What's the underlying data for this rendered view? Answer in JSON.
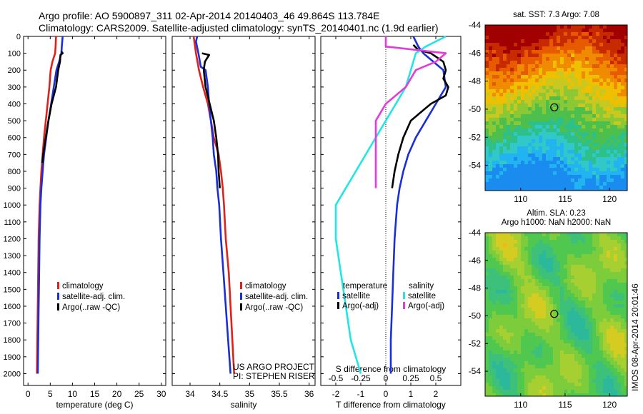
{
  "header": {
    "line1": "Argo profile: AO 5900897_311 02-Apr-2014 20140403_46 49.864S 113.784E",
    "line2": "Climatology: CARS2009. Satellite-adjusted climatology: synTS_20140401.nc (1.9d earlier)"
  },
  "credit": {
    "line1": "US ARGO PROJECT",
    "line2": "PI: STEPHEN RISER"
  },
  "stamp": "IMOS 08-Apr-2014 20:01:46",
  "colors": {
    "climatology": "#e0201a",
    "satellite": "#1a2fd6",
    "argo": "#000000",
    "satellite_s": "#22e5e5",
    "argo_s": "#e83ad8"
  },
  "chart_data": [
    {
      "type": "line",
      "xlabel": "temperature (deg C)",
      "ylabel": "",
      "xlim": [
        -1,
        31
      ],
      "ylim": [
        2070,
        0
      ],
      "xticks": [
        "0",
        "5",
        "10",
        "15",
        "20",
        "25",
        "30"
      ],
      "xtick_values": [
        0,
        5,
        10,
        15,
        20,
        25,
        30
      ],
      "yticks": [
        "0",
        "100",
        "200",
        "300",
        "400",
        "500",
        "600",
        "700",
        "800",
        "900",
        "1000",
        "1100",
        "1200",
        "1300",
        "1400",
        "1500",
        "1600",
        "1700",
        "1800",
        "1900",
        "2000"
      ],
      "legend": [
        "climatology",
        "satellite-adj. clim.",
        "Argo(..raw -QC)"
      ],
      "series": [
        {
          "name": "climatology",
          "color": "#e0201a",
          "points": [
            [
              6.3,
              0
            ],
            [
              6.2,
              60
            ],
            [
              6.1,
              100
            ],
            [
              5.5,
              150
            ],
            [
              5.1,
              200
            ],
            [
              4.8,
              300
            ],
            [
              4.4,
              400
            ],
            [
              4.0,
              500
            ],
            [
              3.6,
              600
            ],
            [
              3.3,
              700
            ],
            [
              3.0,
              800
            ],
            [
              2.8,
              900
            ],
            [
              2.6,
              1000
            ],
            [
              2.4,
              1200
            ],
            [
              2.3,
              1400
            ],
            [
              2.2,
              1600
            ],
            [
              2.1,
              1800
            ],
            [
              2.0,
              2000
            ]
          ]
        },
        {
          "name": "satellite-adj. clim.",
          "color": "#1a2fd6",
          "points": [
            [
              7.8,
              0
            ],
            [
              7.6,
              60
            ],
            [
              7.5,
              100
            ],
            [
              7.0,
              150
            ],
            [
              6.4,
              200
            ],
            [
              5.8,
              300
            ],
            [
              5.2,
              400
            ],
            [
              4.6,
              500
            ],
            [
              4.1,
              600
            ],
            [
              3.6,
              700
            ],
            [
              3.3,
              800
            ],
            [
              3.0,
              900
            ],
            [
              2.8,
              1000
            ],
            [
              2.6,
              1200
            ],
            [
              2.5,
              1400
            ],
            [
              2.4,
              1600
            ],
            [
              2.3,
              1800
            ],
            [
              2.2,
              2000
            ]
          ]
        },
        {
          "name": "Argo(..raw -QC)",
          "color": "#000000",
          "points": [
            [
              7.5,
              90
            ],
            [
              7.8,
              100
            ],
            [
              7.3,
              110
            ],
            [
              7.2,
              150
            ],
            [
              6.8,
              200
            ],
            [
              6.3,
              300
            ],
            [
              5.3,
              400
            ],
            [
              4.6,
              500
            ],
            [
              4.0,
              600
            ],
            [
              3.4,
              700
            ],
            [
              3.2,
              750
            ]
          ]
        }
      ]
    },
    {
      "type": "line",
      "xlabel": "salinity",
      "ylabel": "",
      "xlim": [
        33.7,
        36.1
      ],
      "ylim": [
        2070,
        0
      ],
      "xticks": [
        "34",
        "34.5",
        "35",
        "35.5",
        "36"
      ],
      "xtick_values": [
        34,
        34.5,
        35,
        35.5,
        36
      ],
      "legend": [
        "climatology",
        "satellite-adj. clim.",
        "Argo(..raw -QC)"
      ],
      "series": [
        {
          "name": "climatology",
          "color": "#e0201a",
          "points": [
            [
              34.06,
              0
            ],
            [
              34.08,
              50
            ],
            [
              34.1,
              100
            ],
            [
              34.15,
              200
            ],
            [
              34.22,
              300
            ],
            [
              34.3,
              400
            ],
            [
              34.35,
              500
            ],
            [
              34.4,
              600
            ],
            [
              34.48,
              700
            ],
            [
              34.52,
              800
            ],
            [
              34.55,
              900
            ],
            [
              34.57,
              1000
            ],
            [
              34.6,
              1200
            ],
            [
              34.65,
              1400
            ],
            [
              34.68,
              1600
            ],
            [
              34.71,
              1800
            ],
            [
              34.74,
              2000
            ]
          ]
        },
        {
          "name": "satellite-adj. clim.",
          "color": "#1a2fd6",
          "points": [
            [
              34.12,
              0
            ],
            [
              34.1,
              30
            ],
            [
              34.14,
              100
            ],
            [
              34.18,
              180
            ],
            [
              34.26,
              200
            ],
            [
              34.3,
              300
            ],
            [
              34.32,
              400
            ],
            [
              34.35,
              500
            ],
            [
              34.38,
              600
            ],
            [
              34.4,
              700
            ],
            [
              34.44,
              800
            ],
            [
              34.46,
              900
            ],
            [
              34.49,
              1000
            ],
            [
              34.52,
              1200
            ],
            [
              34.56,
              1400
            ],
            [
              34.6,
              1600
            ],
            [
              34.64,
              1800
            ],
            [
              34.68,
              2000
            ]
          ]
        },
        {
          "name": "Argo(..raw -QC)",
          "color": "#000000",
          "points": [
            [
              34.2,
              100
            ],
            [
              34.32,
              110
            ],
            [
              34.25,
              150
            ],
            [
              34.23,
              200
            ],
            [
              34.26,
              300
            ],
            [
              34.33,
              400
            ],
            [
              34.4,
              500
            ],
            [
              34.44,
              600
            ],
            [
              34.47,
              700
            ],
            [
              34.48,
              800
            ],
            [
              34.5,
              900
            ]
          ]
        }
      ]
    },
    {
      "type": "line",
      "xlabel": "T difference from climatology",
      "x2label": "S difference from climatology",
      "xlim": [
        -2.6,
        3.0
      ],
      "ylim": [
        2070,
        0
      ],
      "xticks": [
        "-2",
        "-1",
        "0",
        "1",
        "2"
      ],
      "xtick_values": [
        -2,
        -1,
        0,
        1,
        2
      ],
      "x2ticks": [
        "-0.5",
        "-0.25",
        "0",
        "0.25",
        "0.5"
      ],
      "x2tick_values": [
        -0.5,
        -0.25,
        0,
        0.25,
        0.5
      ],
      "legend_groups": [
        {
          "title": "temperature",
          "items": [
            "satellite",
            "Argo(-adj)"
          ]
        },
        {
          "title": "salinity",
          "items": [
            "satellite",
            "Argo(-adj)"
          ]
        }
      ],
      "series": [
        {
          "name": "temperature satellite",
          "color": "#1a2fd6",
          "points": [
            [
              1.1,
              0
            ],
            [
              1.3,
              60
            ],
            [
              1.5,
              100
            ],
            [
              1.9,
              150
            ],
            [
              2.3,
              200
            ],
            [
              2.4,
              300
            ],
            [
              2.2,
              350
            ],
            [
              2.0,
              400
            ],
            [
              1.6,
              500
            ],
            [
              1.2,
              600
            ],
            [
              0.9,
              700
            ],
            [
              0.7,
              800
            ],
            [
              0.55,
              900
            ],
            [
              0.45,
              1000
            ],
            [
              0.35,
              1200
            ],
            [
              0.3,
              1400
            ],
            [
              0.25,
              1600
            ],
            [
              0.2,
              1800
            ],
            [
              0.2,
              2000
            ]
          ]
        },
        {
          "name": "temperature Argo(-adj)",
          "color": "#000000",
          "points": [
            [
              1.1,
              50
            ],
            [
              1.3,
              80
            ],
            [
              1.8,
              100
            ],
            [
              2.3,
              150
            ],
            [
              2.4,
              200
            ],
            [
              2.3,
              250
            ],
            [
              2.5,
              300
            ],
            [
              2.4,
              350
            ],
            [
              1.8,
              400
            ],
            [
              1.4,
              450
            ],
            [
              1.0,
              500
            ],
            [
              0.7,
              600
            ],
            [
              0.5,
              700
            ],
            [
              0.35,
              800
            ],
            [
              0.25,
              900
            ]
          ]
        },
        {
          "name": "salinity satellite",
          "color": "#22e5e5",
          "points": [
            [
              0.6,
              0
            ],
            [
              0.4,
              60
            ],
            [
              0.3,
              100
            ],
            [
              0.25,
              200
            ],
            [
              0.2,
              300
            ],
            [
              0.1,
              400
            ],
            [
              0.0,
              500
            ],
            [
              -0.1,
              600
            ],
            [
              -0.2,
              700
            ],
            [
              -0.3,
              800
            ],
            [
              -0.4,
              900
            ],
            [
              -0.5,
              1000
            ],
            [
              -0.5,
              1200
            ],
            [
              -0.45,
              1400
            ],
            [
              -0.4,
              1600
            ],
            [
              -0.35,
              1800
            ],
            [
              -0.25,
              2000
            ]
          ]
        },
        {
          "name": "salinity Argo(-adj)",
          "color": "#e83ad8",
          "points": [
            [
              0.0,
              0
            ],
            [
              0.0,
              60
            ],
            [
              0.6,
              100
            ],
            [
              0.5,
              150
            ],
            [
              0.3,
              200
            ],
            [
              0.2,
              300
            ],
            [
              0.0,
              400
            ],
            [
              -0.1,
              500
            ],
            [
              -0.1,
              600
            ],
            [
              -0.1,
              700
            ],
            [
              -0.1,
              800
            ],
            [
              -0.1,
              900
            ]
          ]
        }
      ]
    },
    {
      "type": "heatmap",
      "title": "sat. SST: 7.3 Argo: 7.08",
      "xticks": [
        "110",
        "115",
        "120"
      ],
      "xtick_values": [
        110,
        115,
        120
      ],
      "yticks": [
        "-44",
        "-46",
        "-48",
        "-50",
        "-52",
        "-54"
      ],
      "ytick_values": [
        -44,
        -46,
        -48,
        -50,
        -52,
        -54
      ],
      "xlim": [
        106,
        122
      ],
      "ylim": [
        -55.8,
        -44
      ],
      "marker": [
        113.784,
        -49.864
      ]
    },
    {
      "type": "heatmap",
      "title": "Altim. SLA: 0.23",
      "subtitle": "Argo h1000: NaN h2000: NaN",
      "xticks": [
        "110",
        "115",
        "120"
      ],
      "xtick_values": [
        110,
        115,
        120
      ],
      "yticks": [
        "-44",
        "-46",
        "-48",
        "-50",
        "-52",
        "-54"
      ],
      "ytick_values": [
        -44,
        -46,
        -48,
        -50,
        -52,
        -54
      ],
      "xlim": [
        106,
        122
      ],
      "ylim": [
        -55.8,
        -44
      ],
      "marker": [
        113.784,
        -49.864
      ]
    }
  ]
}
